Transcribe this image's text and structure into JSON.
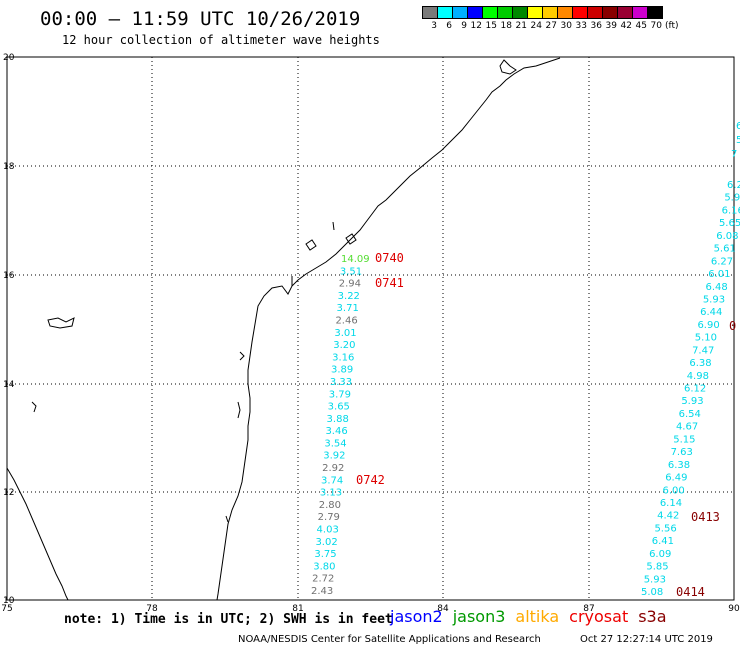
{
  "title": "00:00 – 11:59 UTC 10/26/2019",
  "subtitle": "12 hour collection of altimeter wave heights",
  "legend": {
    "unit": "(ft)",
    "entries": [
      {
        "label": "3",
        "color": "#7a7a7a"
      },
      {
        "label": "6",
        "color": "#00ffff"
      },
      {
        "label": "9",
        "color": "#00b0ff"
      },
      {
        "label": "12",
        "color": "#0000ff"
      },
      {
        "label": "15",
        "color": "#00ff00"
      },
      {
        "label": "18",
        "color": "#00cc00"
      },
      {
        "label": "21",
        "color": "#008800"
      },
      {
        "label": "24",
        "color": "#ffff00"
      },
      {
        "label": "27",
        "color": "#ffcc00"
      },
      {
        "label": "30",
        "color": "#ff8800"
      },
      {
        "label": "33",
        "color": "#ff0000"
      },
      {
        "label": "36",
        "color": "#cc0000"
      },
      {
        "label": "39",
        "color": "#880000"
      },
      {
        "label": "42",
        "color": "#990033"
      },
      {
        "label": "45",
        "color": "#cc00cc"
      },
      {
        "label": "70",
        "color": "#000000"
      }
    ]
  },
  "axes": {
    "lon_ticks": [
      "75",
      "78",
      "81",
      "84",
      "87",
      "90"
    ],
    "lat_ticks": [
      "20",
      "18",
      "16",
      "14",
      "12",
      "10"
    ]
  },
  "track_west": {
    "color_map": {
      "cyan": "#00d8e8",
      "gray": "#707070",
      "green": "#55dd33"
    },
    "points": [
      {
        "v": "14.09",
        "c": "green"
      },
      {
        "v": "3.51",
        "c": "cyan"
      },
      {
        "v": "2.94",
        "c": "gray"
      },
      {
        "v": "3.22",
        "c": "cyan"
      },
      {
        "v": "3.71",
        "c": "cyan"
      },
      {
        "v": "2.46",
        "c": "gray"
      },
      {
        "v": "3.01",
        "c": "cyan"
      },
      {
        "v": "3.20",
        "c": "cyan"
      },
      {
        "v": "3.16",
        "c": "cyan"
      },
      {
        "v": "3.89",
        "c": "cyan"
      },
      {
        "v": "3.33",
        "c": "cyan"
      },
      {
        "v": "3.79",
        "c": "cyan"
      },
      {
        "v": "3.65",
        "c": "cyan"
      },
      {
        "v": "3.88",
        "c": "cyan"
      },
      {
        "v": "3.46",
        "c": "cyan"
      },
      {
        "v": "3.54",
        "c": "cyan"
      },
      {
        "v": "3.92",
        "c": "cyan"
      },
      {
        "v": "2.92",
        "c": "gray"
      },
      {
        "v": "3.74",
        "c": "cyan"
      },
      {
        "v": "3.13",
        "c": "cyan"
      },
      {
        "v": "2.80",
        "c": "gray"
      },
      {
        "v": "2.79",
        "c": "gray"
      },
      {
        "v": "4.03",
        "c": "cyan"
      },
      {
        "v": "3.02",
        "c": "cyan"
      },
      {
        "v": "3.75",
        "c": "cyan"
      },
      {
        "v": "3.80",
        "c": "cyan"
      },
      {
        "v": "2.72",
        "c": "gray"
      },
      {
        "v": "2.43",
        "c": "gray"
      }
    ],
    "time_labels": [
      "0740",
      "0741",
      "0742"
    ],
    "time_color": "#dd0000"
  },
  "track_east": {
    "color": "#00d8e8",
    "top_partial": [
      "6",
      "5",
      "7"
    ],
    "points": [
      "6.2",
      "5.9",
      "6.16",
      "5.65",
      "6.08",
      "5.61",
      "6.27",
      "6.01",
      "6.48",
      "5.93",
      "6.44",
      "6.90",
      "5.10",
      "7.47",
      "6.38",
      "4.98",
      "6.12",
      "5.93",
      "6.54",
      "4.67",
      "5.15",
      "7.63",
      "6.38",
      "6.49",
      "6.00",
      "6.14",
      "4.42",
      "5.56",
      "6.41",
      "6.09",
      "5.85",
      "5.93",
      "5.08"
    ],
    "time_labels": [
      "0413",
      "0414"
    ],
    "partial_time": "0",
    "time_color": "#880000"
  },
  "note": "note: 1) Time is in UTC; 2) SWH is in feet",
  "satellites": [
    {
      "name": "jason2",
      "color": "#0000ff"
    },
    {
      "name": "jason3",
      "color": "#009900"
    },
    {
      "name": "altika",
      "color": "#ffaa00"
    },
    {
      "name": "cryosat",
      "color": "#ee0000"
    },
    {
      "name": "s3a",
      "color": "#880000"
    }
  ],
  "credit": "NOAA/NESDIS Center for Satellite Applications and Research",
  "timestamp": "Oct 27 12:27:14 UTC 2019"
}
